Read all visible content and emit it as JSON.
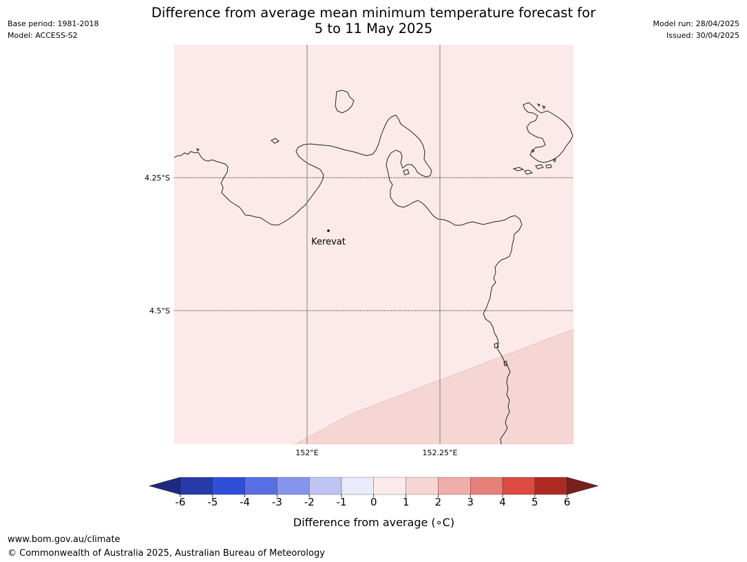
{
  "header": {
    "base_period": "Base period: 1981-2018",
    "model": "Model: ACCESS-S2",
    "model_run": "Model run: 28/04/2025",
    "issued": "Issued: 30/04/2025",
    "title_line1": "Difference from average mean minimum temperature forecast for",
    "title_line2": "5 to 11 May 2025"
  },
  "map": {
    "lat_labels": [
      "4.25°S",
      "4.5°S"
    ],
    "lon_labels": [
      "152°E",
      "152.25°E"
    ],
    "place": "Kerevat",
    "fill_colors": {
      "zone_0_1": "#fbeae9",
      "zone_1_2": "#f5d6d4"
    }
  },
  "colorbar": {
    "label": "Difference from average (∘C)",
    "ticks": [
      "-6",
      "-5",
      "-4",
      "-3",
      "-2",
      "-1",
      "0",
      "1",
      "2",
      "3",
      "4",
      "5",
      "6"
    ],
    "colors": [
      "#1e2a80",
      "#263aa9",
      "#304fd9",
      "#5a6fe3",
      "#8594ec",
      "#bfc5f2",
      "#e9ebfb",
      "#fbeae9",
      "#f5d6d4",
      "#efaea9",
      "#e5807b",
      "#dc4a40",
      "#ad2a22",
      "#7a1f1c"
    ]
  },
  "footer": {
    "url": "www.bom.gov.au/climate",
    "copyright": "© Commonwealth of Australia 2025, Australian Bureau of Meteorology"
  }
}
